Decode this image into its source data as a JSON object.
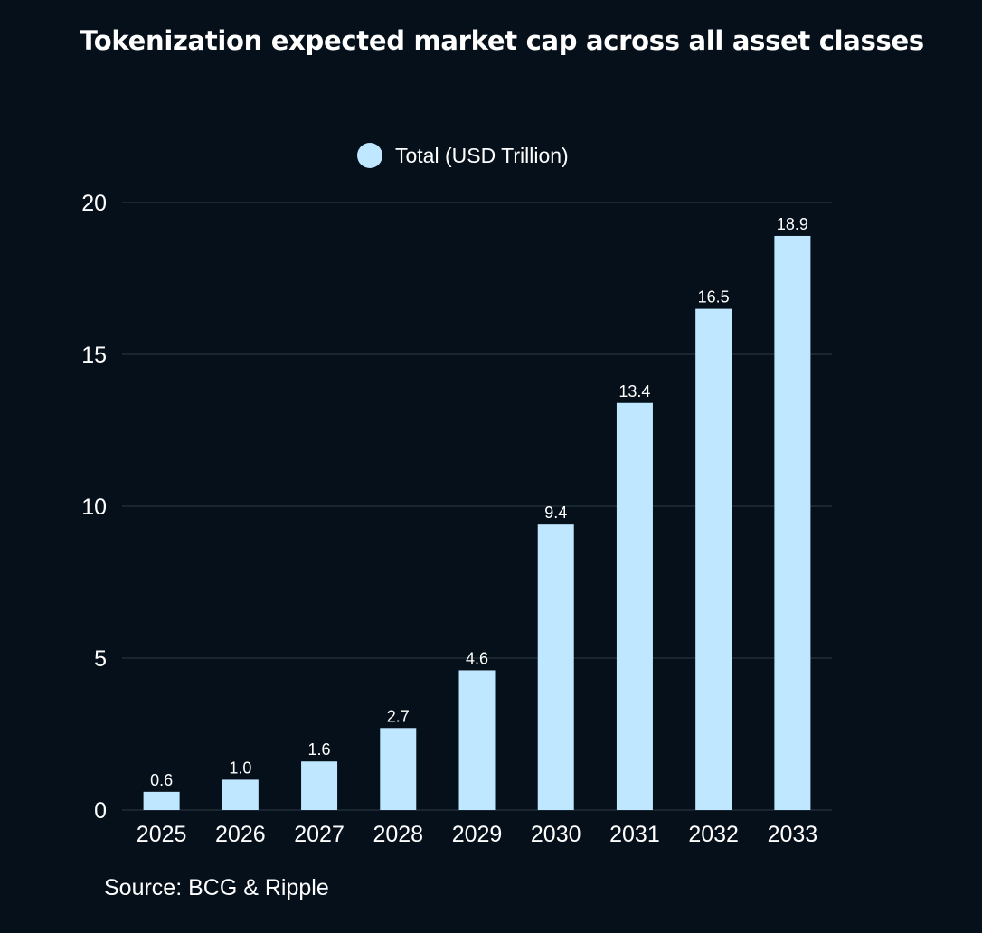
{
  "chart_data": {
    "type": "bar",
    "title": "Tokenization expected market cap across all asset classes",
    "categories": [
      "2025",
      "2026",
      "2027",
      "2028",
      "2029",
      "2030",
      "2031",
      "2032",
      "2033"
    ],
    "series": [
      {
        "name": "Total (USD Trillion)",
        "values": [
          0.6,
          1.0,
          1.6,
          2.7,
          4.6,
          9.4,
          13.4,
          16.5,
          18.9
        ],
        "labels": [
          "0.6",
          "1.0",
          "1.6",
          "2.7",
          "4.6",
          "9.4",
          "13.4",
          "16.5",
          "18.9"
        ],
        "color": "#bfe7ff"
      }
    ],
    "ylim": [
      0,
      20
    ],
    "yticks": [
      0,
      5,
      10,
      15,
      20
    ],
    "xlabel": "",
    "ylabel": "",
    "grid": true,
    "legend": "top-center"
  },
  "source": "Source: BCG & Ripple",
  "colors": {
    "background": "#06101a",
    "bar": "#bfe7ff",
    "grid": "#2c3a44",
    "text": "#ffffff"
  }
}
